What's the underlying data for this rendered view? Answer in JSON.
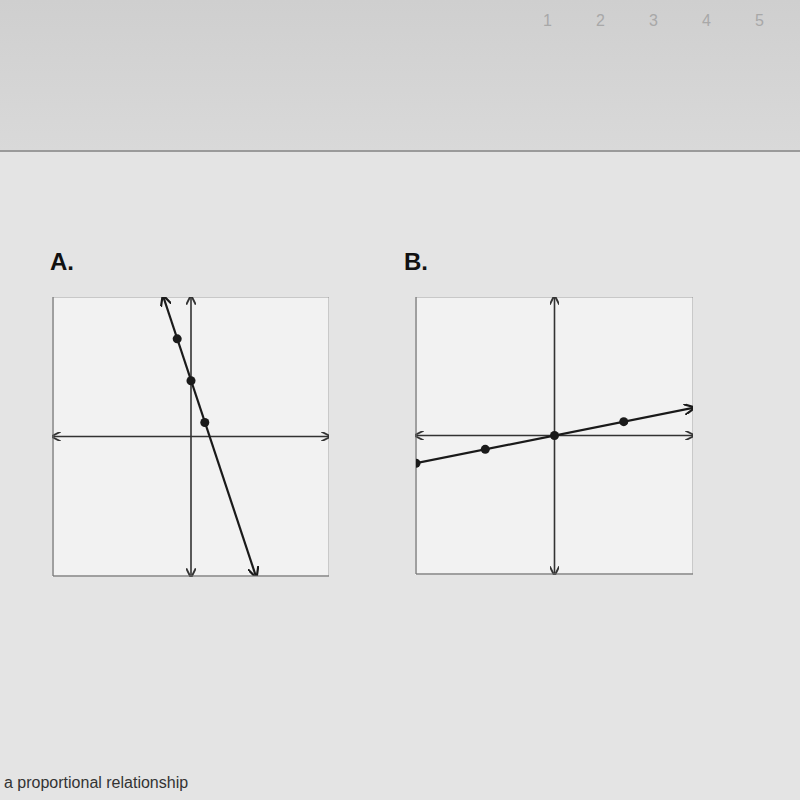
{
  "chart_data": [
    {
      "type": "line",
      "title": "A.",
      "xlim": [
        -10,
        10
      ],
      "ylim": [
        -10,
        10
      ],
      "xticks": [
        -10,
        -9,
        -8,
        -7,
        -6,
        -5,
        -4,
        -3,
        -2,
        -1,
        0,
        1,
        2,
        3,
        4,
        5,
        6,
        7,
        8,
        9,
        10
      ],
      "yticks": [
        -10,
        -9,
        -8,
        -7,
        -6,
        -5,
        -4,
        -3,
        -2,
        -1,
        0,
        1,
        2,
        3,
        4,
        5,
        6,
        7,
        8,
        9,
        10
      ],
      "grid": true,
      "tick_labels": false,
      "series": [
        {
          "type": "line",
          "color": "#1a1a1a",
          "marker": "arrows",
          "x": [
            -2,
            4.7
          ],
          "values": [
            10,
            -10
          ]
        },
        {
          "type": "scatter",
          "color": "#1a1a1a",
          "marker": "circle",
          "x": [
            -1,
            0,
            1
          ],
          "values": [
            7,
            4,
            1
          ]
        }
      ]
    },
    {
      "type": "line",
      "title": "B.",
      "xlim": [
        -10,
        10
      ],
      "ylim": [
        -10,
        10
      ],
      "xticks": [
        -10,
        -9,
        -8,
        -7,
        -6,
        -5,
        -4,
        -3,
        -2,
        -1,
        0,
        1,
        2,
        3,
        4,
        5,
        6,
        7,
        8,
        9,
        10
      ],
      "yticks": [
        -10,
        -9,
        -8,
        -7,
        -6,
        -5,
        -4,
        -3,
        -2,
        -1,
        0,
        1,
        2,
        3,
        4,
        5,
        6,
        7,
        8,
        9,
        10
      ],
      "grid": true,
      "tick_labels": false,
      "series": [
        {
          "type": "line",
          "color": "#1a1a1a",
          "marker": "arrow",
          "x": [
            -10,
            10
          ],
          "values": [
            -2,
            2
          ]
        },
        {
          "type": "scatter",
          "color": "#1a1a1a",
          "marker": "circle",
          "x": [
            -10,
            -5,
            0,
            5
          ],
          "values": [
            -2,
            -1,
            0,
            1
          ]
        }
      ]
    }
  ],
  "page": {
    "numbers": [
      "1",
      "2",
      "3",
      "4",
      "5"
    ],
    "footer": "a proportional relationship"
  }
}
